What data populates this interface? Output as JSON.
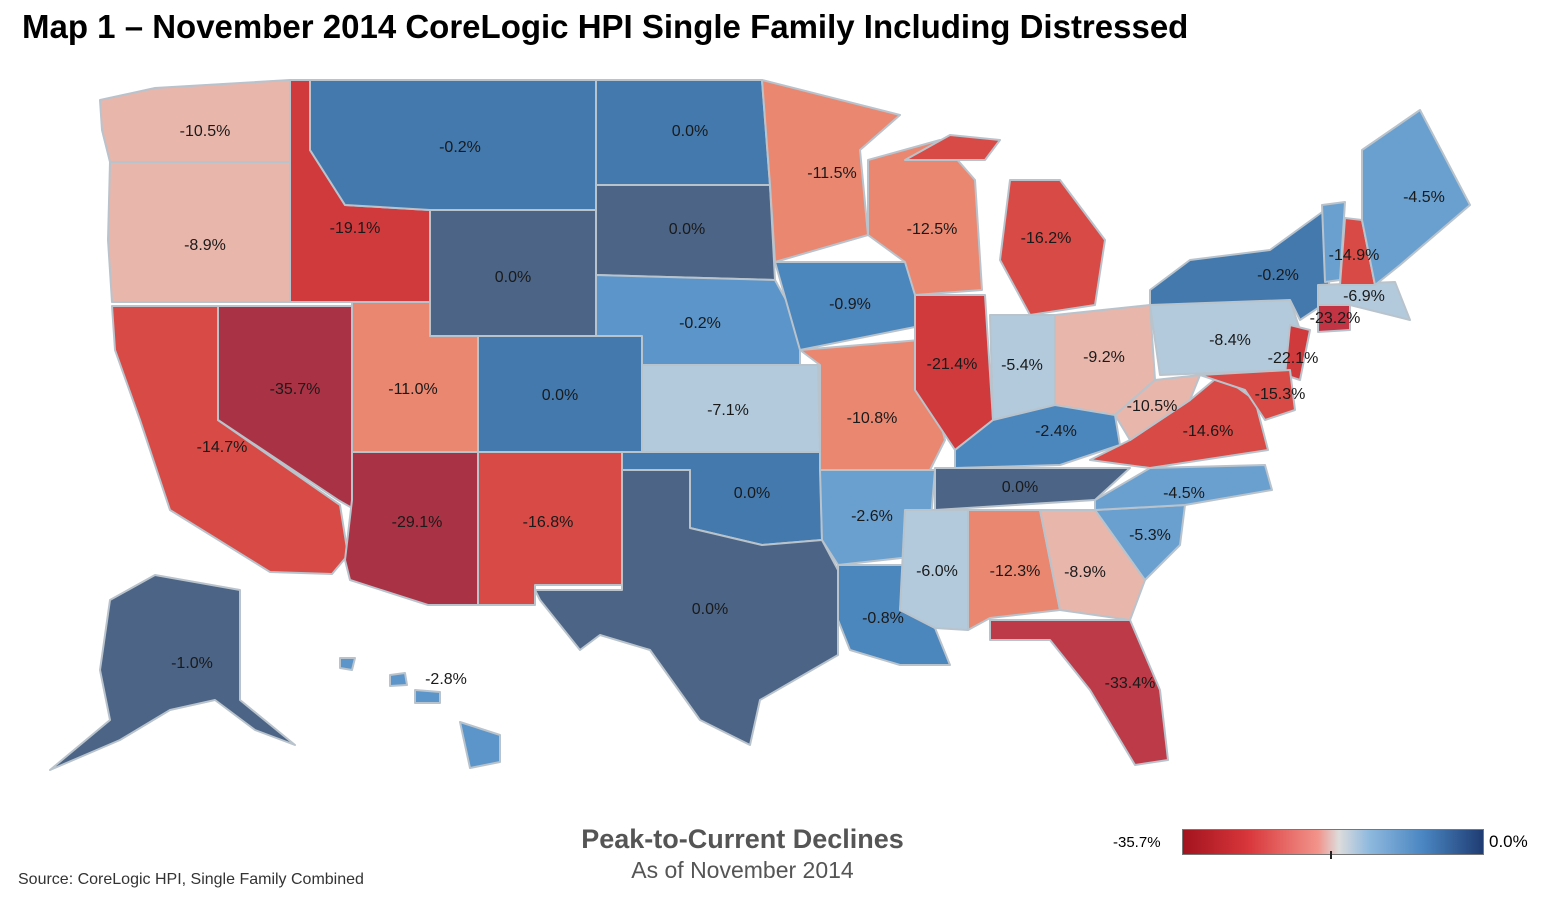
{
  "title": "Map 1 – November 2014 CoreLogic HPI Single Family Including Distressed",
  "legend": {
    "title": "Peak-to-Current Declines",
    "subtitle": "As of November 2014",
    "min_label": "-35.7%",
    "max_label": "0.0%",
    "colors": {
      "low": "#a3131e",
      "mid_red": "#d9373b",
      "light_red": "#f2948b",
      "neutral": "#dcdcdc",
      "light_blue": "#8fb9de",
      "blue": "#4a86c2",
      "dark": "#1f3c73"
    }
  },
  "source": "Source: CoreLogic HPI, Single Family Combined",
  "states": [
    {
      "id": "WA",
      "label": "-10.5%",
      "color": "#e8b6ab"
    },
    {
      "id": "OR",
      "label": "-8.9%",
      "color": "#e8b6ab"
    },
    {
      "id": "CA",
      "label": "-14.7%",
      "color": "#d84a45"
    },
    {
      "id": "ID",
      "label": "-19.1%",
      "color": "#d03a3d"
    },
    {
      "id": "NV",
      "label": "-35.7%",
      "color": "#a93345"
    },
    {
      "id": "UT",
      "label": "-11.0%",
      "color": "#ea8770"
    },
    {
      "id": "AZ",
      "label": "-29.1%",
      "color": "#a93345"
    },
    {
      "id": "MT",
      "label": "-0.2%",
      "color": "#4379ad"
    },
    {
      "id": "WY",
      "label": "0.0%",
      "color": "#4c6485"
    },
    {
      "id": "CO",
      "label": "0.0%",
      "color": "#4379ad"
    },
    {
      "id": "NM",
      "label": "-16.8%",
      "color": "#d84a45"
    },
    {
      "id": "ND",
      "label": "0.0%",
      "color": "#4379ad"
    },
    {
      "id": "SD",
      "label": "0.0%",
      "color": "#4c6485"
    },
    {
      "id": "NE",
      "label": "-0.2%",
      "color": "#5b95c9"
    },
    {
      "id": "KS",
      "label": "-7.1%",
      "color": "#b2cadc"
    },
    {
      "id": "OK",
      "label": "0.0%",
      "color": "#4379ad"
    },
    {
      "id": "TX",
      "label": "0.0%",
      "color": "#4c6485"
    },
    {
      "id": "MN",
      "label": "-11.5%",
      "color": "#ea8770"
    },
    {
      "id": "IA",
      "label": "-0.9%",
      "color": "#4b86bd"
    },
    {
      "id": "MO",
      "label": "-10.8%",
      "color": "#ea8770"
    },
    {
      "id": "AR",
      "label": "-2.6%",
      "color": "#6aa0cf"
    },
    {
      "id": "LA",
      "label": "-0.8%",
      "color": "#4b86bd"
    },
    {
      "id": "WI",
      "label": "-12.5%",
      "color": "#ea8770"
    },
    {
      "id": "IL",
      "label": "-21.4%",
      "color": "#d03a3d"
    },
    {
      "id": "MI",
      "label": "-16.2%",
      "color": "#d84a45"
    },
    {
      "id": "IN",
      "label": "-5.4%",
      "color": "#b2cadc"
    },
    {
      "id": "OH",
      "label": "-9.2%",
      "color": "#e8b6ab"
    },
    {
      "id": "KY",
      "label": "-2.4%",
      "color": "#4b86bd"
    },
    {
      "id": "TN",
      "label": "0.0%",
      "color": "#4c6485"
    },
    {
      "id": "MS",
      "label": "-6.0%",
      "color": "#b2cadc"
    },
    {
      "id": "AL",
      "label": "-12.3%",
      "color": "#ea8770"
    },
    {
      "id": "GA",
      "label": "-8.9%",
      "color": "#e8b6ab"
    },
    {
      "id": "FL",
      "label": "-33.4%",
      "color": "#bd3a48"
    },
    {
      "id": "SC",
      "label": "-5.3%",
      "color": "#6aa0cf"
    },
    {
      "id": "NC",
      "label": "-4.5%",
      "color": "#6aa0cf"
    },
    {
      "id": "VA",
      "label": "-14.6%",
      "color": "#d84a45"
    },
    {
      "id": "WV",
      "label": "-10.5%",
      "color": "#e8b6ab"
    },
    {
      "id": "PA",
      "label": "-8.4%",
      "color": "#b2cadc"
    },
    {
      "id": "NY",
      "label": "-0.2%",
      "color": "#4379ad"
    },
    {
      "id": "NJ",
      "label": "-22.1%",
      "color": "#d03a3d"
    },
    {
      "id": "MD",
      "label": "-15.3%",
      "color": "#d84a45"
    },
    {
      "id": "CT",
      "label": "-23.2%",
      "color": "#c23344"
    },
    {
      "id": "MA",
      "label": "-6.9%",
      "color": "#b2cadc"
    },
    {
      "id": "VT",
      "label": "",
      "color": "#6aa0cf"
    },
    {
      "id": "NH",
      "label": "-14.9%",
      "color": "#d84a45"
    },
    {
      "id": "ME",
      "label": "-4.5%",
      "color": "#6aa0cf"
    },
    {
      "id": "AK",
      "label": "-1.0%",
      "color": "#4c6485"
    },
    {
      "id": "HI",
      "label": "-2.8%",
      "color": "#5b95c9"
    }
  ]
}
